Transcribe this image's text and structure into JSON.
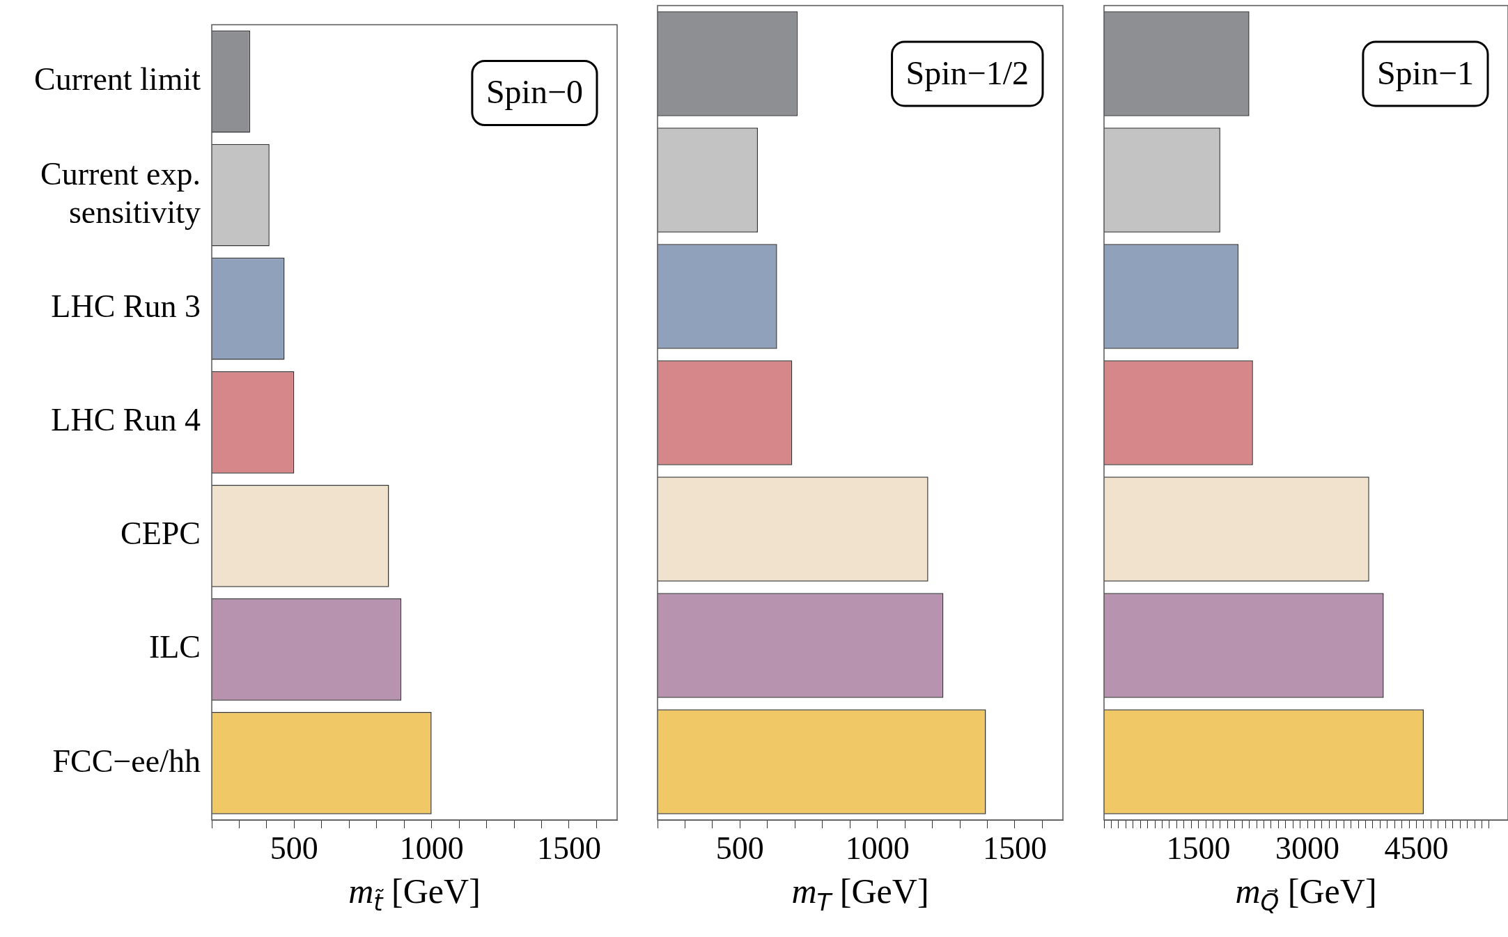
{
  "chart_data": [
    {
      "type": "bar",
      "orientation": "horizontal",
      "categories": [
        "Current limit",
        "Current exp. sensitivity",
        "LHC Run 3",
        "LHC Run 4",
        "CEPC",
        "ILC",
        "FCC−ee/hh"
      ],
      "values": [
        340,
        410,
        465,
        500,
        845,
        890,
        1000
      ],
      "colors": [
        "#8e8f93",
        "#c2c3c2",
        "#8fa1bb",
        "#d68789",
        "#f0e2cc",
        "#b793b0",
        "#f0c866"
      ],
      "xlim": [
        200,
        1675
      ],
      "xticks": [
        {
          "value": 200,
          "label": null
        },
        {
          "value": 300,
          "label": null
        },
        {
          "value": 400,
          "label": null
        },
        500,
        {
          "value": 600,
          "label": null
        },
        {
          "value": 700,
          "label": null
        },
        {
          "value": 800,
          "label": null
        },
        {
          "value": 900,
          "label": null
        },
        1000,
        {
          "value": 1100,
          "label": null
        },
        {
          "value": 1200,
          "label": null
        },
        {
          "value": 1300,
          "label": null
        },
        {
          "value": 1400,
          "label": null
        },
        1500,
        {
          "value": 1600,
          "label": null
        }
      ],
      "xlabel": "m$_{t̃}$ [GeV]",
      "annotations": [
        "Spin−0"
      ]
    },
    {
      "type": "bar",
      "orientation": "horizontal",
      "values": [
        710,
        565,
        635,
        690,
        1185,
        1240,
        1395
      ],
      "categories": [
        null,
        null,
        null,
        null,
        null,
        null,
        null
      ],
      "colors": [
        "#8e8f93",
        "#c2c3c2",
        "#8fa1bb",
        "#d68789",
        "#f0e2cc",
        "#b793b0",
        "#f0c866"
      ],
      "xlim": [
        200,
        1675
      ],
      "xticks": [
        {
          "value": 200,
          "label": null
        },
        {
          "value": 300,
          "label": null
        },
        {
          "value": 400,
          "label": null
        },
        500,
        {
          "value": 600,
          "label": null
        },
        {
          "value": 700,
          "label": null
        },
        {
          "value": 800,
          "label": null
        },
        {
          "value": 900,
          "label": null
        },
        1000,
        {
          "value": 1100,
          "label": null
        },
        {
          "value": 1200,
          "label": null
        },
        {
          "value": 1300,
          "label": null
        },
        {
          "value": 1400,
          "label": null
        },
        1500,
        {
          "value": 1600,
          "label": null
        }
      ],
      "xlabel": "m$_{T}$ [GeV]",
      "annotations": [
        "Spin−1/2"
      ],
      "tick_labels": "x"
    },
    {
      "type": "bar",
      "orientation": "horizontal",
      "values": [
        2200,
        1800,
        2050,
        2250,
        3850,
        4050,
        4600
      ],
      "categories": [
        null,
        null,
        null,
        null,
        null,
        null,
        null
      ],
      "colors": [
        "#8e8f93",
        "#c2c3c2",
        "#8fa1bb",
        "#d68789",
        "#f0e2cc",
        "#b793b0",
        "#f0c866"
      ],
      "xlim": [
        200,
        5760
      ],
      "xticks": [
        {
          "value": 200,
          "label": null
        },
        {
          "value": 300,
          "label": null
        },
        {
          "value": 400,
          "label": null
        },
        {
          "value": 500,
          "label": null
        },
        {
          "value": 600,
          "label": null
        },
        {
          "value": 700,
          "label": null
        },
        {
          "value": 800,
          "label": null
        },
        {
          "value": 900,
          "label": null
        },
        {
          "value": 1000,
          "label": null
        },
        {
          "value": 1100,
          "label": null
        },
        {
          "value": 1200,
          "label": null
        },
        {
          "value": 1300,
          "label": null
        },
        {
          "value": 1400,
          "label": null
        },
        1500,
        {
          "value": 1600,
          "label": null
        },
        {
          "value": 1700,
          "label": null
        },
        {
          "value": 1800,
          "label": null
        },
        {
          "value": 1900,
          "label": null
        },
        {
          "value": 2000,
          "label": null
        },
        {
          "value": 2100,
          "label": null
        },
        {
          "value": 2200,
          "label": null
        },
        {
          "value": 2300,
          "label": null
        },
        {
          "value": 2400,
          "label": null
        },
        {
          "value": 2500,
          "label": null
        },
        {
          "value": 2600,
          "label": null
        },
        {
          "value": 2700,
          "label": null
        },
        {
          "value": 2800,
          "label": null
        },
        {
          "value": 2900,
          "label": null
        },
        3000,
        {
          "value": 3100,
          "label": null
        },
        {
          "value": 3200,
          "label": null
        },
        {
          "value": 3300,
          "label": null
        },
        {
          "value": 3400,
          "label": null
        },
        {
          "value": 3500,
          "label": null
        },
        {
          "value": 3600,
          "label": null
        },
        {
          "value": 3700,
          "label": null
        },
        {
          "value": 3800,
          "label": null
        },
        {
          "value": 3900,
          "label": null
        },
        {
          "value": 4000,
          "label": null
        },
        {
          "value": 4100,
          "label": null
        },
        {
          "value": 4200,
          "label": null
        },
        {
          "value": 4300,
          "label": null
        },
        {
          "value": 4400,
          "label": null
        },
        4500,
        {
          "value": 4600,
          "label": null
        },
        {
          "value": 4700,
          "label": null
        },
        {
          "value": 4800,
          "label": null
        },
        {
          "value": 4900,
          "label": null
        },
        {
          "value": 5000,
          "label": null
        },
        {
          "value": 5100,
          "label": null
        },
        {
          "value": 5200,
          "label": null
        },
        {
          "value": 5300,
          "label": null
        },
        {
          "value": 5400,
          "label": null
        },
        {
          "value": 5500,
          "label": null
        }
      ],
      "xlabel": "m$_{Q⃗}$ [GeV]",
      "annotations": [
        "Spin−1"
      ],
      "tick_labels": "x"
    }
  ]
}
